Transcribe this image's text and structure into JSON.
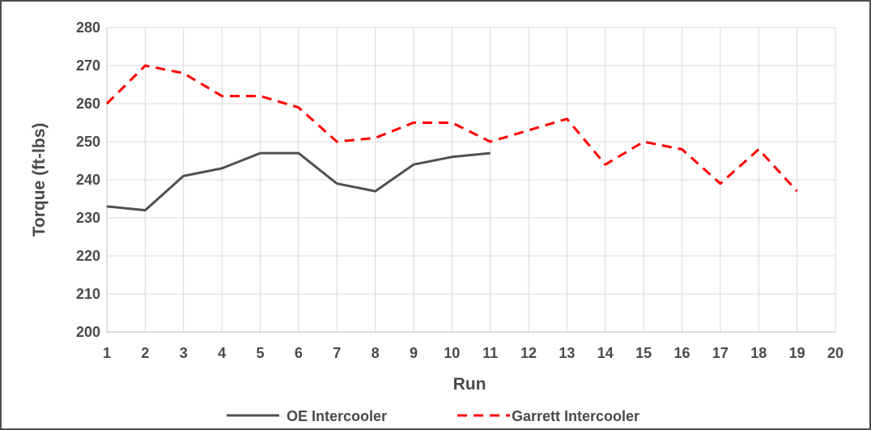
{
  "chart_data": {
    "type": "line",
    "xlabel": "Run",
    "ylabel": "Torque (ft-lbs)",
    "xlim": [
      1,
      20
    ],
    "ylim": [
      200,
      280
    ],
    "x_ticks": [
      "1",
      "2",
      "3",
      "4",
      "5",
      "6",
      "7",
      "8",
      "9",
      "10",
      "11",
      "12",
      "13",
      "14",
      "15",
      "16",
      "17",
      "18",
      "19",
      "20"
    ],
    "y_ticks": [
      "200",
      "210",
      "220",
      "230",
      "240",
      "250",
      "260",
      "270",
      "280"
    ],
    "grid": true,
    "legend_position": "bottom",
    "series": [
      {
        "name": "OE Intercooler",
        "color": "#505050",
        "style": "solid",
        "x": [
          1,
          2,
          3,
          4,
          5,
          6,
          7,
          8,
          9,
          10,
          11
        ],
        "values": [
          233,
          232,
          241,
          243,
          247,
          247,
          239,
          237,
          244,
          246,
          247
        ]
      },
      {
        "name": "Garrett Intercooler",
        "color": "#ff0000",
        "style": "dashed",
        "x": [
          1,
          2,
          3,
          4,
          5,
          6,
          7,
          8,
          9,
          10,
          11,
          12,
          13,
          14,
          15,
          16,
          17,
          18,
          19
        ],
        "values": [
          260,
          270,
          268,
          262,
          262,
          259,
          250,
          251,
          255,
          255,
          250,
          253,
          256,
          244,
          250,
          248,
          239,
          248,
          237
        ]
      }
    ]
  }
}
